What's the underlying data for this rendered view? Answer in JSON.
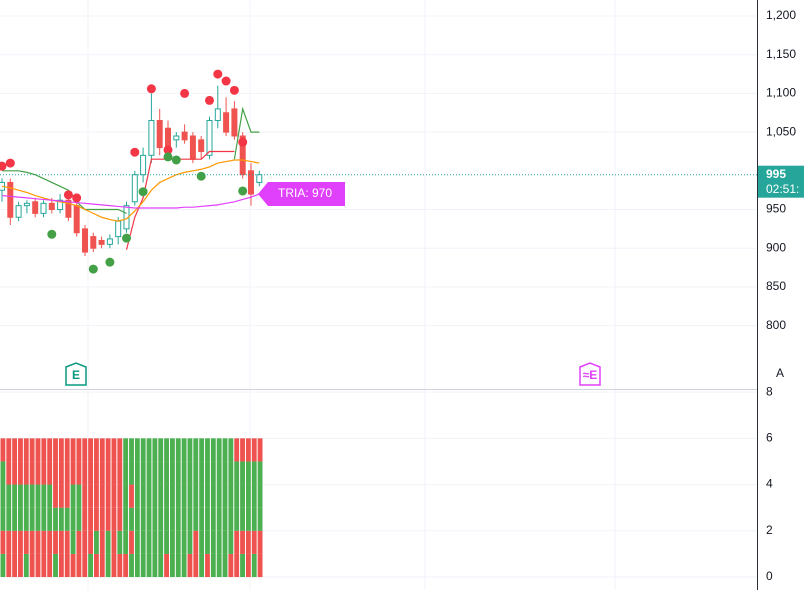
{
  "chart_data": [
    {
      "type": "candlestick",
      "ylim": [
        719.4,
        1220.7
      ],
      "yticks": [
        {
          "value": 1200,
          "label": "1,200"
        },
        {
          "value": 1150,
          "label": "1,150"
        },
        {
          "value": 1100,
          "label": "1,100"
        },
        {
          "value": 1050,
          "label": "1,050"
        },
        950,
        900,
        850,
        800
      ],
      "grid": true,
      "up_color": "#26a69a",
      "down_color": "#ef5350",
      "open": [
        975,
        985,
        940,
        955,
        960,
        945,
        958,
        950,
        962,
        955,
        925,
        915,
        910,
        905,
        915,
        925,
        960,
        995,
        1020,
        1065,
        1055,
        1040,
        1050,
        1045,
        1040,
        1020,
        1065,
        1075,
        1080,
        1045,
        1000,
        985
      ],
      "high": [
        990,
        990,
        960,
        962,
        965,
        962,
        965,
        970,
        975,
        960,
        930,
        920,
        915,
        918,
        940,
        960,
        1000,
        1030,
        1100,
        1080,
        1065,
        1050,
        1060,
        1050,
        1045,
        1070,
        1110,
        1095,
        1090,
        1050,
        1010,
        1000
      ],
      "low": [
        960,
        930,
        935,
        945,
        940,
        940,
        945,
        945,
        935,
        915,
        890,
        895,
        900,
        900,
        905,
        920,
        955,
        985,
        1010,
        1020,
        1015,
        1030,
        1035,
        1010,
        1015,
        1015,
        1055,
        1045,
        1040,
        990,
        955,
        980
      ],
      "close": [
        985,
        940,
        955,
        958,
        945,
        958,
        950,
        962,
        940,
        920,
        895,
        900,
        905,
        912,
        935,
        955,
        995,
        1020,
        1065,
        1030,
        1025,
        1045,
        1040,
        1015,
        1025,
        1065,
        1080,
        1050,
        1045,
        995,
        970,
        995
      ],
      "series": [
        {
          "style": "line",
          "color": "#43a047",
          "values": [
            1000,
            1000,
            1000,
            998,
            995,
            990,
            985,
            980,
            975,
            960,
            950,
            950,
            950,
            950,
            950,
            945,
            null,
            null,
            null,
            null,
            null,
            null,
            null,
            null,
            null,
            null,
            null,
            null,
            1015,
            1080,
            1050,
            1050
          ]
        },
        {
          "style": "line",
          "color": "#f23645",
          "values": [
            null,
            null,
            null,
            null,
            null,
            null,
            null,
            null,
            null,
            null,
            null,
            null,
            null,
            null,
            null,
            898,
            940,
            965,
            1015,
            1015,
            1015,
            1015,
            1015,
            1015,
            1015,
            1025,
            1025,
            1025,
            1025,
            null,
            null,
            null
          ]
        },
        {
          "style": "line",
          "color": "#ff9800",
          "values": [
            980,
            978,
            975,
            972,
            968,
            965,
            962,
            960,
            958,
            955,
            950,
            945,
            940,
            937,
            935,
            938,
            948,
            960,
            975,
            985,
            990,
            995,
            998,
            1000,
            1002,
            1005,
            1010,
            1012,
            1014,
            1014,
            1012,
            1010
          ]
        },
        {
          "style": "line",
          "color": "#e040fb",
          "values": [
            968,
            967,
            966,
            965,
            964,
            963,
            962,
            961,
            960,
            959,
            958,
            957,
            956,
            955,
            954,
            953,
            952,
            952,
            952,
            952,
            952,
            952,
            953,
            953,
            954,
            955,
            956,
            958,
            960,
            963,
            966,
            970
          ]
        },
        {
          "style": "dot",
          "color": "#f23645",
          "values": [
            1006,
            1010,
            null,
            null,
            null,
            null,
            null,
            null,
            969,
            965,
            null,
            null,
            null,
            null,
            null,
            null,
            1024,
            null,
            1106,
            null,
            1027,
            null,
            1100,
            null,
            null,
            1091,
            1125,
            1116,
            1104,
            1037,
            null,
            null
          ]
        },
        {
          "style": "dot",
          "color": "#43a047",
          "values": [
            null,
            null,
            null,
            null,
            null,
            null,
            918,
            null,
            null,
            null,
            null,
            873,
            null,
            882,
            null,
            913,
            null,
            973,
            null,
            null,
            1018,
            1014,
            null,
            null,
            993,
            null,
            null,
            null,
            null,
            974,
            null,
            null
          ]
        }
      ],
      "last_price": 995,
      "countdown": "02:51:",
      "last_color": "#26a69a",
      "annotation": "TRIA: 970",
      "events": [
        {
          "label": "E",
          "color": "#089981"
        },
        {
          "label": "≈E",
          "color": "#e040fb"
        }
      ],
      "button": "A"
    },
    {
      "type": "heatmap",
      "ylim": [
        -0.56,
        8.09
      ],
      "yticks": [
        0,
        2,
        4,
        6,
        8
      ],
      "grid": true,
      "colors": [
        "#ef5350",
        "#4caf50"
      ],
      "cells": [
        [
          1,
          0,
          1,
          1,
          1,
          0
        ],
        [
          0,
          0,
          1,
          1,
          0,
          0
        ],
        [
          0,
          0,
          1,
          1,
          0,
          0
        ],
        [
          0,
          0,
          1,
          1,
          0,
          0
        ],
        [
          1,
          0,
          1,
          1,
          0,
          0
        ],
        [
          0,
          0,
          1,
          1,
          0,
          0
        ],
        [
          0,
          0,
          1,
          1,
          0,
          0
        ],
        [
          0,
          0,
          1,
          1,
          0,
          0
        ],
        [
          0,
          0,
          1,
          1,
          0,
          0
        ],
        [
          1,
          0,
          1,
          0,
          0,
          0
        ],
        [
          0,
          0,
          1,
          0,
          0,
          0
        ],
        [
          0,
          0,
          1,
          0,
          0,
          0
        ],
        [
          0,
          1,
          1,
          1,
          0,
          0
        ],
        [
          0,
          0,
          1,
          1,
          0,
          0
        ],
        [
          0,
          0,
          0,
          0,
          0,
          0
        ],
        [
          1,
          0,
          0,
          0,
          0,
          0
        ],
        [
          0,
          1,
          0,
          0,
          0,
          0
        ],
        [
          0,
          0,
          0,
          0,
          0,
          0
        ],
        [
          1,
          1,
          0,
          0,
          0,
          0
        ],
        [
          0,
          0,
          0,
          0,
          0,
          0
        ],
        [
          0,
          1,
          0,
          0,
          0,
          0
        ],
        [
          0,
          1,
          1,
          1,
          1,
          1
        ],
        [
          1,
          0,
          1,
          0,
          1,
          1
        ],
        [
          1,
          1,
          1,
          1,
          1,
          1
        ],
        [
          1,
          1,
          1,
          1,
          1,
          1
        ],
        [
          1,
          1,
          1,
          1,
          1,
          1
        ],
        [
          1,
          1,
          1,
          1,
          1,
          1
        ],
        [
          1,
          1,
          1,
          1,
          1,
          1
        ],
        [
          0,
          1,
          1,
          1,
          1,
          1
        ],
        [
          1,
          1,
          1,
          1,
          1,
          1
        ],
        [
          1,
          1,
          1,
          1,
          1,
          1
        ],
        [
          1,
          1,
          1,
          1,
          1,
          1
        ],
        [
          0,
          1,
          1,
          1,
          1,
          1
        ],
        [
          0,
          0,
          1,
          1,
          1,
          1
        ],
        [
          1,
          1,
          1,
          1,
          1,
          1
        ],
        [
          0,
          1,
          1,
          1,
          1,
          1
        ],
        [
          1,
          1,
          1,
          1,
          1,
          1
        ],
        [
          1,
          1,
          1,
          1,
          1,
          1
        ],
        [
          1,
          1,
          1,
          1,
          1,
          1
        ],
        [
          0,
          1,
          1,
          1,
          1,
          1
        ],
        [
          0,
          0,
          1,
          1,
          1,
          0
        ],
        [
          1,
          0,
          1,
          1,
          1,
          0
        ],
        [
          0,
          0,
          1,
          1,
          1,
          0
        ],
        [
          1,
          0,
          1,
          1,
          1,
          0
        ],
        [
          0,
          0,
          1,
          1,
          1,
          0
        ]
      ]
    }
  ]
}
